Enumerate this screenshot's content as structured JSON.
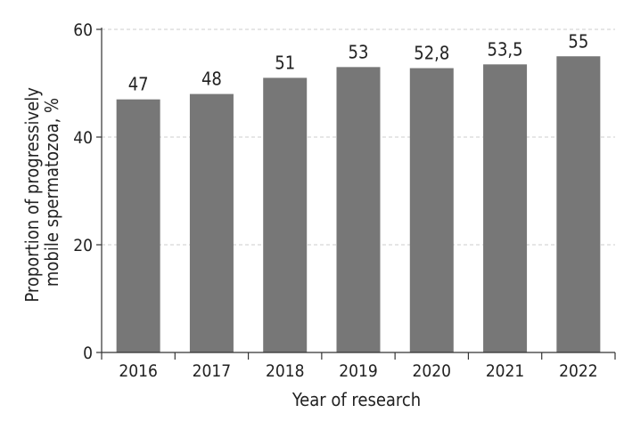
{
  "chart_data": {
    "type": "bar",
    "categories": [
      "2016",
      "2017",
      "2018",
      "2019",
      "2020",
      "2021",
      "2022"
    ],
    "values": [
      47,
      48,
      51,
      53,
      52.8,
      53.5,
      55
    ],
    "data_labels": [
      "47",
      "48",
      "51",
      "53",
      "52,8",
      "53,5",
      "55"
    ],
    "xlabel": "Year of research",
    "ylabel_lines": [
      "Proportion of progressively",
      "mobile spermatozoa, %"
    ],
    "ylim": [
      0,
      60
    ],
    "yticks": [
      0,
      20,
      40,
      60
    ],
    "grid": true,
    "colors": {
      "bar": "#777777",
      "axis": "#333333",
      "grid": "#cccccc",
      "text": "#222222"
    }
  }
}
